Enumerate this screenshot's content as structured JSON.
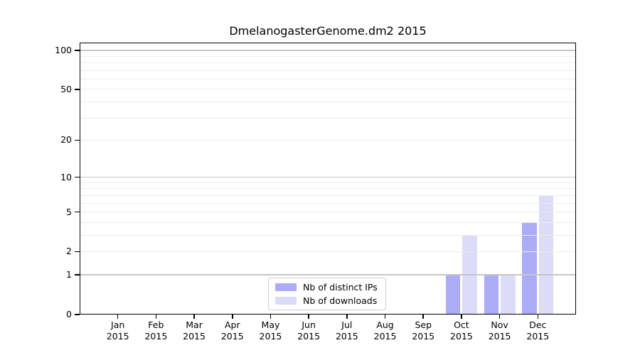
{
  "chart_data": {
    "type": "bar",
    "title": "DmelanogasterGenome.dm2 2015",
    "categories": [
      "Jan",
      "Feb",
      "Mar",
      "Apr",
      "May",
      "Jun",
      "Jul",
      "Aug",
      "Sep",
      "Oct",
      "Nov",
      "Dec"
    ],
    "category_year": "2015",
    "series": [
      {
        "name": "Nb of distinct IPs",
        "color": "#acacf8",
        "values": [
          0,
          0,
          0,
          0,
          0,
          0,
          0,
          0,
          0,
          1,
          1,
          4
        ]
      },
      {
        "name": "Nb of downloads",
        "color": "#dcdcf9",
        "values": [
          0,
          0,
          0,
          0,
          0,
          0,
          0,
          0,
          0,
          3,
          1,
          7
        ]
      }
    ],
    "yscale": "log1p",
    "ylim": [
      0,
      114.5
    ],
    "ytick_labels": [
      "0",
      "1",
      "2",
      "5",
      "10",
      "20",
      "50",
      "100"
    ],
    "ytick_values": [
      0,
      1,
      2,
      5,
      10,
      20,
      50,
      100
    ],
    "grid": {
      "major_values": [
        1,
        10,
        100
      ],
      "minor_values": [
        2,
        3,
        4,
        5,
        6,
        7,
        8,
        9,
        20,
        30,
        40,
        50,
        60,
        70,
        80,
        90
      ],
      "major_color": "#c6c6c6",
      "minor_color": "#ededed"
    },
    "legend_position": "lower center, inside plot",
    "xlabel": "",
    "ylabel": ""
  },
  "colors": {
    "background": "#ffffff",
    "spine": "#000000",
    "text": "#000000"
  }
}
